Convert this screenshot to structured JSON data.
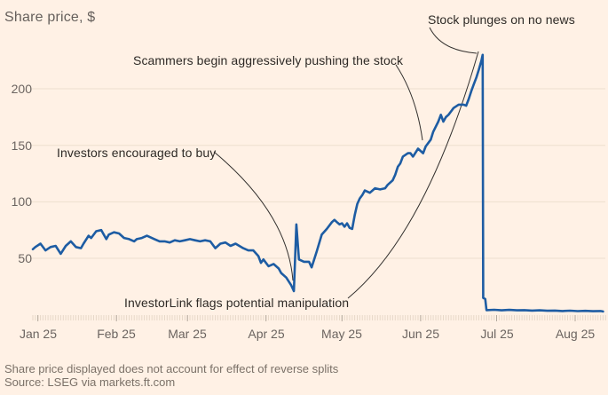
{
  "title": "Share price, $",
  "footer": {
    "note": "Share price displayed does not account for effect of reverse splits",
    "source": "Source: LSEG via markets.ft.com"
  },
  "colors": {
    "background": "#FFF1E5",
    "price_line": "#1d5ca3",
    "gridline": "#eedfcf",
    "minor_tick": "#e7d8c8",
    "month_tick": "#b3a89c",
    "axis_text": "#6b6460",
    "annotation_text": "#2e2a26",
    "annotation_line": "#33302e",
    "footer_text": "#7b7168",
    "title_text": "#66605c"
  },
  "chart_data": {
    "type": "line",
    "title": "Share price, $",
    "xlabel": "",
    "ylabel": "Share price, $",
    "x_unit": "days since 1 Jan 2025",
    "xlim": [
      -2,
      224
    ],
    "ylim": [
      0,
      235
    ],
    "grid": "horizontal only",
    "legend": "none",
    "y_ticks": [
      50,
      100,
      150,
      200
    ],
    "x_ticks": {
      "labels": [
        "Jan 25",
        "Feb 25",
        "Mar 25",
        "Apr 25",
        "May 25",
        "Jun 25",
        "Jul 25",
        "Aug 25"
      ],
      "days": [
        0,
        31,
        59,
        90,
        120,
        151,
        181,
        212
      ],
      "minor_tick_every_days": 1
    },
    "series": [
      {
        "name": "Share price ($)",
        "points": [
          [
            -2,
            58
          ],
          [
            -1,
            60
          ],
          [
            1,
            63
          ],
          [
            3,
            57
          ],
          [
            5,
            60
          ],
          [
            7,
            61
          ],
          [
            9,
            54
          ],
          [
            11,
            61
          ],
          [
            13,
            65
          ],
          [
            15,
            60
          ],
          [
            17,
            59
          ],
          [
            18,
            63
          ],
          [
            20,
            70
          ],
          [
            21,
            68
          ],
          [
            23,
            74
          ],
          [
            25,
            75
          ],
          [
            26,
            71
          ],
          [
            27,
            67
          ],
          [
            28,
            71
          ],
          [
            30,
            73
          ],
          [
            32,
            72
          ],
          [
            34,
            68
          ],
          [
            36,
            67
          ],
          [
            38,
            65
          ],
          [
            39,
            67
          ],
          [
            41,
            68
          ],
          [
            43,
            70
          ],
          [
            44,
            69
          ],
          [
            46,
            67
          ],
          [
            48,
            65
          ],
          [
            50,
            65
          ],
          [
            52,
            64
          ],
          [
            54,
            66
          ],
          [
            56,
            65
          ],
          [
            58,
            66
          ],
          [
            60,
            67
          ],
          [
            62,
            66
          ],
          [
            64,
            65
          ],
          [
            66,
            66
          ],
          [
            68,
            65
          ],
          [
            70,
            59
          ],
          [
            72,
            63
          ],
          [
            74,
            64
          ],
          [
            76,
            61
          ],
          [
            78,
            63
          ],
          [
            81,
            59
          ],
          [
            83,
            57
          ],
          [
            85,
            57
          ],
          [
            87,
            52
          ],
          [
            88,
            46
          ],
          [
            89,
            49
          ],
          [
            91,
            43
          ],
          [
            93,
            45
          ],
          [
            95,
            41
          ],
          [
            96,
            37
          ],
          [
            98,
            33
          ],
          [
            100,
            26
          ],
          [
            101,
            21
          ],
          [
            102,
            80
          ],
          [
            103,
            49
          ],
          [
            105,
            47
          ],
          [
            107,
            47
          ],
          [
            108,
            42
          ],
          [
            110,
            56
          ],
          [
            112,
            71
          ],
          [
            114,
            76
          ],
          [
            116,
            82
          ],
          [
            117,
            84
          ],
          [
            118,
            82
          ],
          [
            119,
            80
          ],
          [
            120,
            81
          ],
          [
            121,
            78
          ],
          [
            122,
            81
          ],
          [
            123,
            77
          ],
          [
            124,
            76
          ],
          [
            125,
            88
          ],
          [
            126,
            98
          ],
          [
            127,
            103
          ],
          [
            128,
            106
          ],
          [
            129,
            110
          ],
          [
            131,
            108
          ],
          [
            133,
            112
          ],
          [
            135,
            111
          ],
          [
            137,
            112
          ],
          [
            138,
            115
          ],
          [
            140,
            119
          ],
          [
            141,
            124
          ],
          [
            142,
            131
          ],
          [
            143,
            134
          ],
          [
            144,
            140
          ],
          [
            146,
            143
          ],
          [
            147,
            143
          ],
          [
            148,
            140
          ],
          [
            150,
            147
          ],
          [
            152,
            143
          ],
          [
            153,
            149
          ],
          [
            155,
            155
          ],
          [
            156,
            162
          ],
          [
            158,
            171
          ],
          [
            159,
            177
          ],
          [
            160,
            171
          ],
          [
            161,
            175
          ],
          [
            162,
            177
          ],
          [
            164,
            183
          ],
          [
            166,
            186
          ],
          [
            168,
            186
          ],
          [
            169,
            185
          ],
          [
            170,
            191
          ],
          [
            171,
            198
          ],
          [
            172,
            204
          ],
          [
            173,
            210
          ],
          [
            174,
            217
          ],
          [
            175,
            225
          ],
          [
            175.5,
            230
          ],
          [
            175.7,
            15
          ],
          [
            176.5,
            14
          ],
          [
            177,
            4.2
          ],
          [
            180,
            4.5
          ],
          [
            183,
            4
          ],
          [
            186,
            4.4
          ],
          [
            189,
            4
          ],
          [
            192,
            4.2
          ],
          [
            195,
            3.8
          ],
          [
            198,
            4
          ],
          [
            201,
            3.6
          ],
          [
            204,
            3.8
          ],
          [
            207,
            3.4
          ],
          [
            210,
            3.7
          ],
          [
            213,
            3.3
          ],
          [
            216,
            3.5
          ],
          [
            219,
            3.2
          ],
          [
            222,
            3.4
          ],
          [
            223,
            3
          ]
        ]
      }
    ],
    "annotations": [
      {
        "id": "investors",
        "text": "Investors encouraged to buy",
        "points_to": {
          "day": 101,
          "price": 21
        }
      },
      {
        "id": "scammers",
        "text": "Scammers begin aggressively pushing the stock",
        "points_to": {
          "day": 152,
          "price": 145
        }
      },
      {
        "id": "plunges",
        "text": "Stock plunges on no news",
        "points_to": {
          "day": 175.5,
          "price": 230
        }
      },
      {
        "id": "investorlink",
        "text": "InvestorLink flags potential manipulation",
        "points_to": {
          "day": 175.5,
          "price": 225
        }
      }
    ]
  }
}
